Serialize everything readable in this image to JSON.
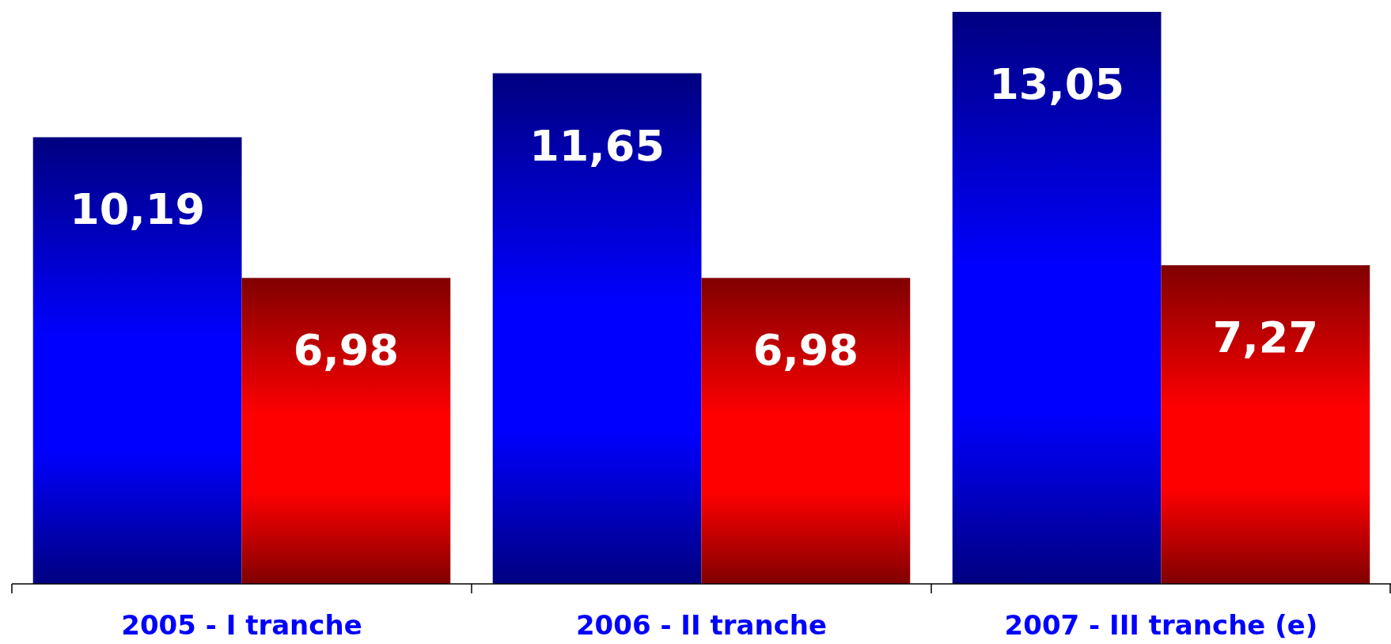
{
  "chart_data": {
    "type": "bar",
    "categories": [
      "2005 - I tranche",
      "2006 - II tranche",
      "2007 - III tranche (e)"
    ],
    "series": [
      {
        "color": "#0000ff",
        "values": [
          10.19,
          11.65,
          13.05
        ],
        "value_labels": [
          "10,19",
          "11,65",
          "13,05"
        ]
      },
      {
        "color": "#ff0000",
        "values": [
          6.98,
          6.98,
          7.27
        ],
        "value_labels": [
          "6,98",
          "6,98",
          "7,27"
        ]
      }
    ],
    "stacked": false
  }
}
